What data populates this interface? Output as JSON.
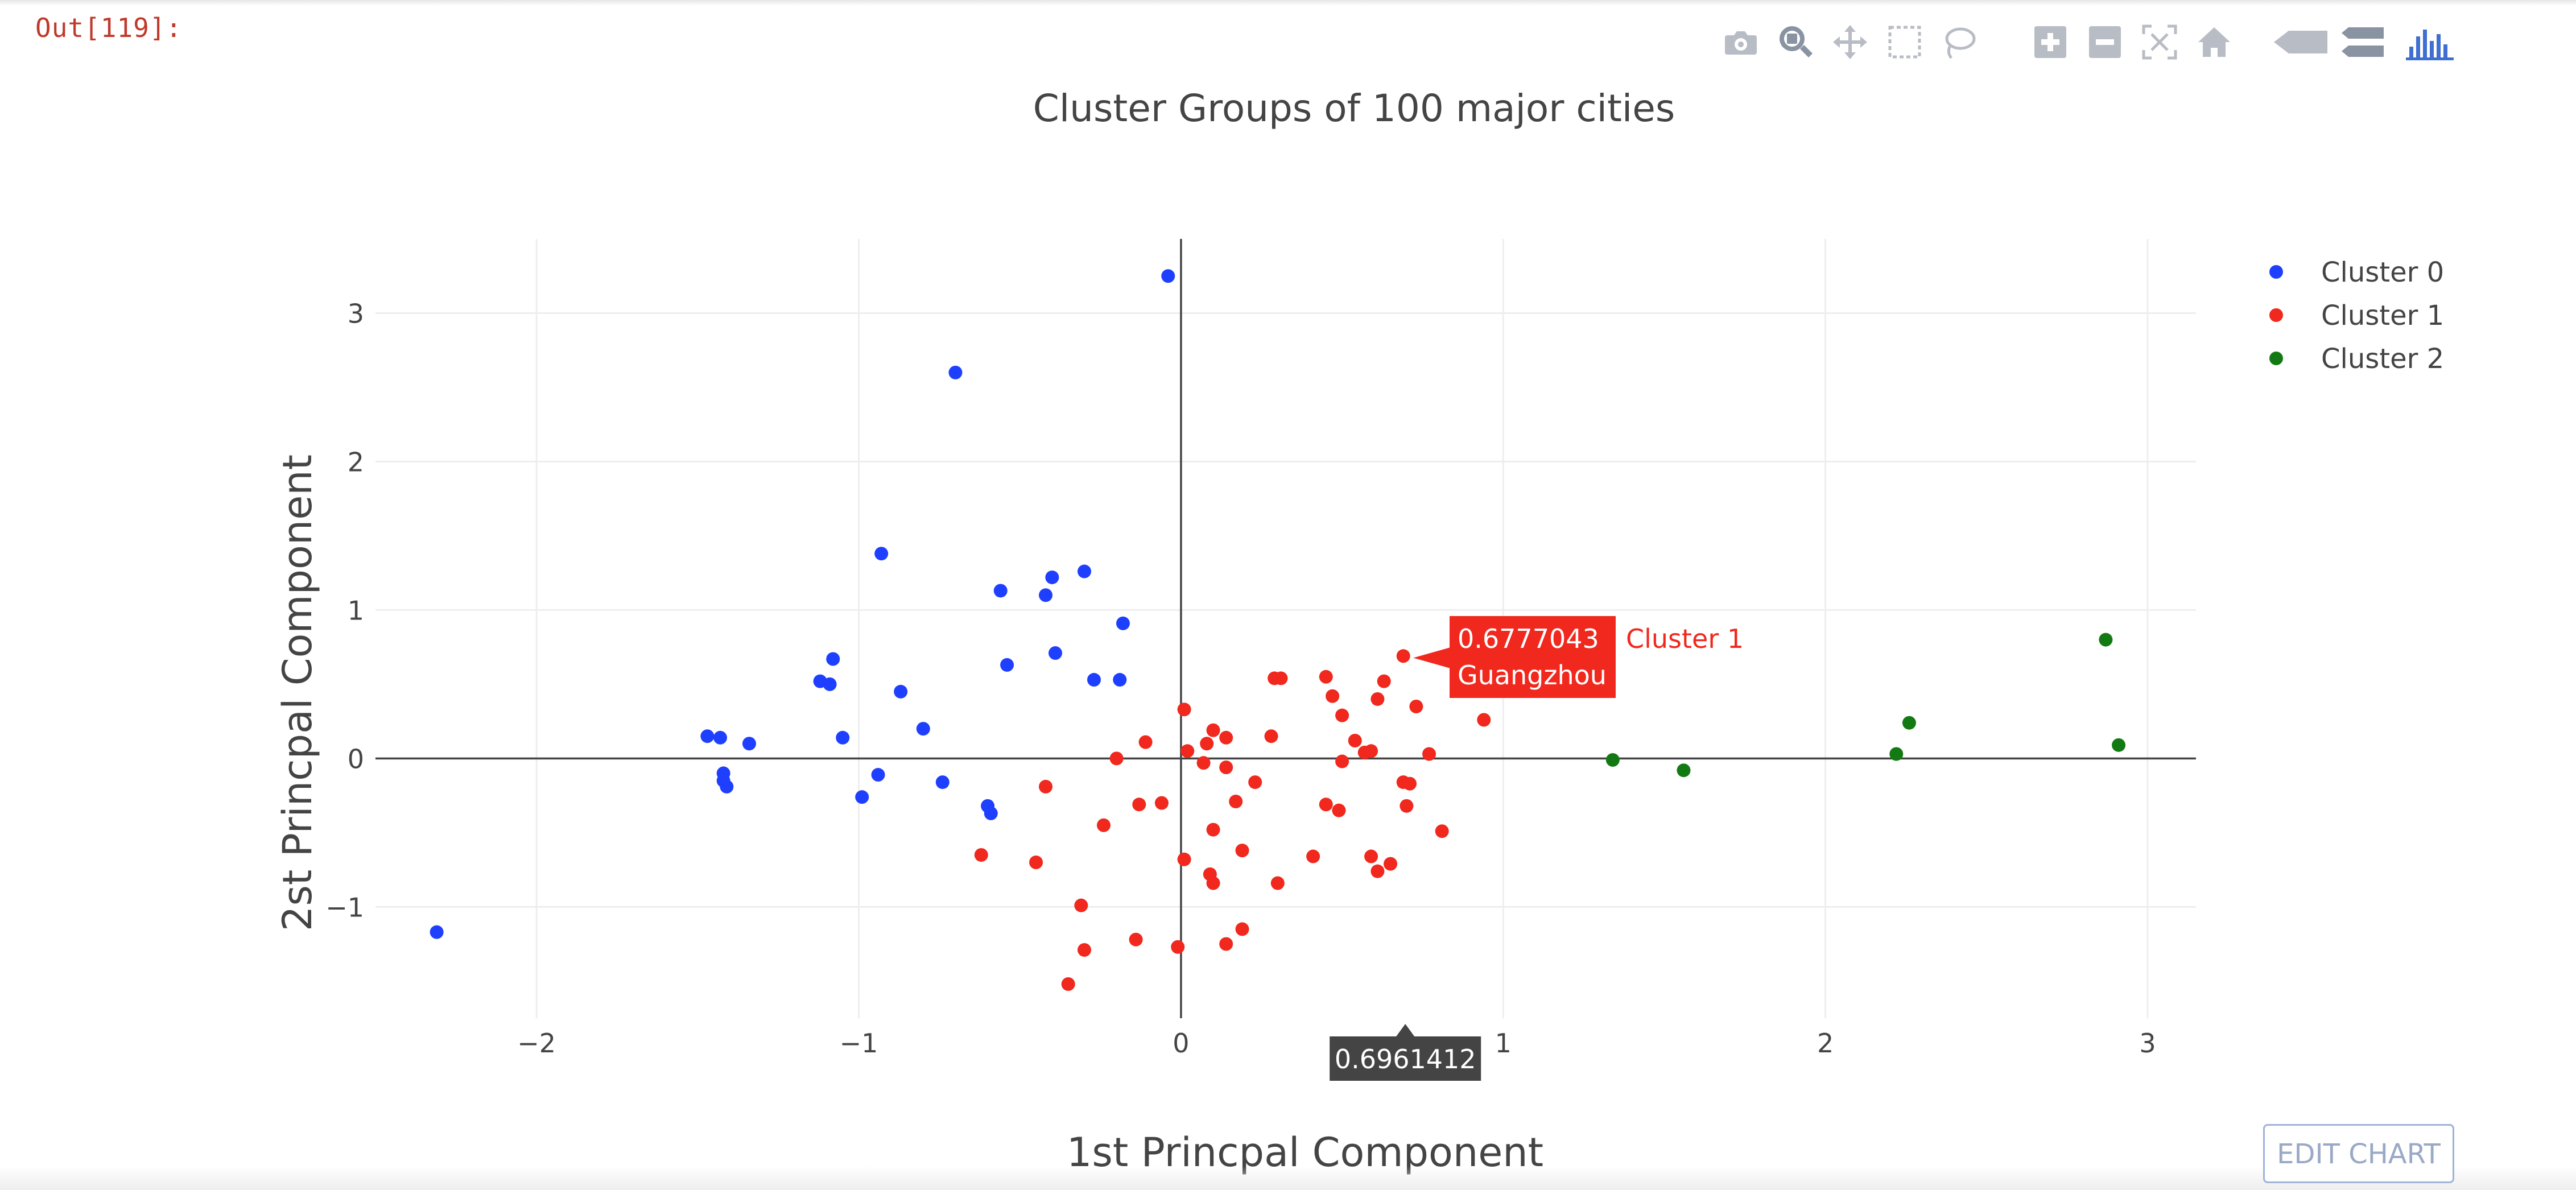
{
  "cell": {
    "out_label": "Out[119]:"
  },
  "modebar": {
    "buttons": [
      {
        "name": "camera-icon"
      },
      {
        "name": "zoom-icon"
      },
      {
        "name": "pan-icon"
      },
      {
        "name": "box-select-icon"
      },
      {
        "name": "lasso-select-icon"
      },
      {
        "name": "zoom-in-icon"
      },
      {
        "name": "zoom-out-icon"
      },
      {
        "name": "autoscale-icon"
      },
      {
        "name": "home-icon"
      },
      {
        "name": "hover-closest-icon"
      },
      {
        "name": "hover-compare-icon"
      },
      {
        "name": "plotly-logo-icon"
      }
    ],
    "icon_color": "#b8bcc4",
    "active_color": "#8a93a2",
    "logo_color": "#3f6fd1"
  },
  "edit_chart_label": "EDIT CHART",
  "chart_data": {
    "type": "scatter",
    "title": "Cluster Groups of 100 major cities",
    "xlabel": "1st Princpal Component",
    "ylabel": "2st Princpal Component",
    "xlim": [
      -2.5,
      3.15
    ],
    "ylim": [
      -1.75,
      3.5
    ],
    "xticks": [
      -2,
      -1,
      0,
      1,
      2,
      3
    ],
    "xtick_labels": [
      "−2",
      "−1",
      "0",
      "1",
      "2",
      "3"
    ],
    "yticks": [
      -1,
      0,
      1,
      2,
      3
    ],
    "ytick_labels": [
      "−1",
      "0",
      "1",
      "2",
      "3"
    ],
    "grid": true,
    "zero_lines": true,
    "legend_position": "top-right",
    "series": [
      {
        "name": "Cluster 0",
        "color": "#1f3fff",
        "points": [
          [
            -0.04,
            3.25
          ],
          [
            -0.7,
            2.6
          ],
          [
            -0.93,
            1.38
          ],
          [
            -0.56,
            1.13
          ],
          [
            -0.4,
            1.22
          ],
          [
            -0.3,
            1.26
          ],
          [
            -0.42,
            1.1
          ],
          [
            -0.18,
            0.91
          ],
          [
            -0.39,
            0.71
          ],
          [
            -0.54,
            0.63
          ],
          [
            -0.27,
            0.53
          ],
          [
            -0.19,
            0.53
          ],
          [
            -1.08,
            0.67
          ],
          [
            -1.12,
            0.52
          ],
          [
            -1.09,
            0.5
          ],
          [
            -0.87,
            0.45
          ],
          [
            -0.8,
            0.2
          ],
          [
            -1.05,
            0.14
          ],
          [
            -1.47,
            0.15
          ],
          [
            -1.43,
            0.14
          ],
          [
            -1.34,
            0.1
          ],
          [
            -1.42,
            -0.1
          ],
          [
            -1.42,
            -0.15
          ],
          [
            -1.41,
            -0.19
          ],
          [
            -0.94,
            -0.11
          ],
          [
            -0.74,
            -0.16
          ],
          [
            -0.99,
            -0.26
          ],
          [
            -0.6,
            -0.32
          ],
          [
            -0.59,
            -0.37
          ],
          [
            -2.31,
            -1.17
          ]
        ]
      },
      {
        "name": "Cluster 1",
        "color": "#f0281e",
        "points": [
          [
            0.69,
            0.69
          ],
          [
            0.94,
            0.26
          ],
          [
            0.73,
            0.35
          ],
          [
            0.63,
            0.52
          ],
          [
            0.45,
            0.55
          ],
          [
            0.31,
            0.54
          ],
          [
            0.29,
            0.54
          ],
          [
            0.47,
            0.42
          ],
          [
            0.61,
            0.4
          ],
          [
            0.5,
            0.29
          ],
          [
            0.28,
            0.15
          ],
          [
            0.1,
            0.19
          ],
          [
            0.14,
            0.14
          ],
          [
            0.54,
            0.12
          ],
          [
            0.08,
            0.1
          ],
          [
            0.02,
            0.05
          ],
          [
            0.57,
            0.04
          ],
          [
            0.59,
            0.05
          ],
          [
            0.77,
            0.03
          ],
          [
            0.5,
            -0.02
          ],
          [
            0.07,
            -0.03
          ],
          [
            0.14,
            -0.06
          ],
          [
            0.23,
            -0.16
          ],
          [
            0.69,
            -0.16
          ],
          [
            0.71,
            -0.17
          ],
          [
            -0.11,
            0.11
          ],
          [
            -0.2,
            0.0
          ],
          [
            0.01,
            0.33
          ],
          [
            -0.42,
            -0.19
          ],
          [
            0.17,
            -0.29
          ],
          [
            0.45,
            -0.31
          ],
          [
            0.49,
            -0.35
          ],
          [
            0.7,
            -0.32
          ],
          [
            -0.13,
            -0.31
          ],
          [
            -0.06,
            -0.3
          ],
          [
            -0.24,
            -0.45
          ],
          [
            0.1,
            -0.48
          ],
          [
            0.81,
            -0.49
          ],
          [
            0.19,
            -0.62
          ],
          [
            0.41,
            -0.66
          ],
          [
            0.59,
            -0.66
          ],
          [
            0.65,
            -0.71
          ],
          [
            0.61,
            -0.76
          ],
          [
            0.01,
            -0.68
          ],
          [
            -0.62,
            -0.65
          ],
          [
            -0.45,
            -0.7
          ],
          [
            0.09,
            -0.78
          ],
          [
            0.1,
            -0.84
          ],
          [
            0.3,
            -0.84
          ],
          [
            -0.31,
            -0.99
          ],
          [
            0.19,
            -1.15
          ],
          [
            -0.14,
            -1.22
          ],
          [
            -0.3,
            -1.29
          ],
          [
            0.14,
            -1.25
          ],
          [
            -0.01,
            -1.27
          ],
          [
            -0.35,
            -1.52
          ]
        ]
      },
      {
        "name": "Cluster 2",
        "color": "#137a13",
        "points": [
          [
            2.87,
            0.8
          ],
          [
            2.26,
            0.24
          ],
          [
            2.91,
            0.09
          ],
          [
            2.22,
            0.03
          ],
          [
            1.34,
            -0.01
          ],
          [
            1.56,
            -0.08
          ]
        ]
      }
    ],
    "hover": {
      "x": 0.6961412,
      "y": 0.6777043,
      "y_text": "0.6777043",
      "name_text": "Guangzhou",
      "series_text": "Cluster 1",
      "x_text": "0.6961412"
    }
  }
}
